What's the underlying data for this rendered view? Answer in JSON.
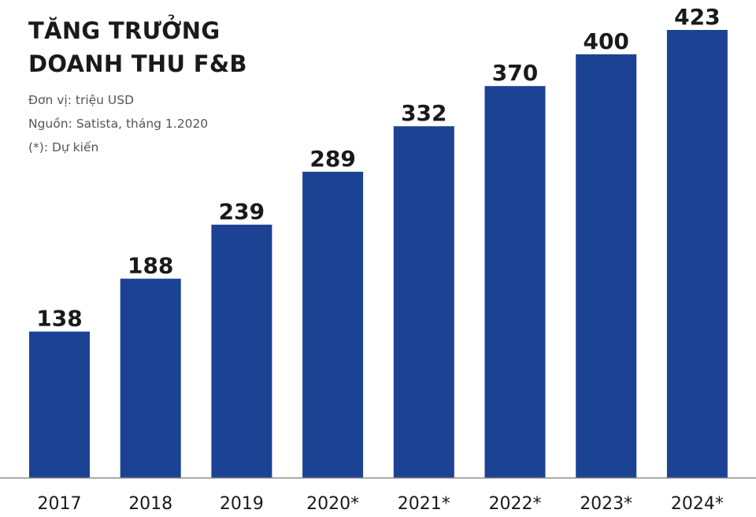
{
  "title_lines": [
    "TĂNG TRƯỞNG",
    "DOANH THU F&B"
  ],
  "notes": [
    "Đơn vị: triệu USD",
    "Nguồn: Satista, tháng 1.2020",
    "(*): Dự kiến"
  ],
  "colors": {
    "bar": "#1c4294",
    "axis": "#888888",
    "text": "#1a1a1a",
    "note": "#555555"
  },
  "chart_data": {
    "type": "bar",
    "categories": [
      "2017",
      "2018",
      "2019",
      "2020*",
      "2021*",
      "2022*",
      "2023*",
      "2024*"
    ],
    "values": [
      138,
      188,
      239,
      289,
      332,
      370,
      400,
      423
    ],
    "value_labels": [
      "138",
      "188",
      "239",
      "289",
      "332",
      "370",
      "400",
      "423"
    ],
    "title": "TĂNG TRƯỞNG DOANH THU F&B",
    "xlabel": "",
    "ylabel": "",
    "ylim": [
      0,
      423
    ],
    "grid": false,
    "legend": "none"
  }
}
